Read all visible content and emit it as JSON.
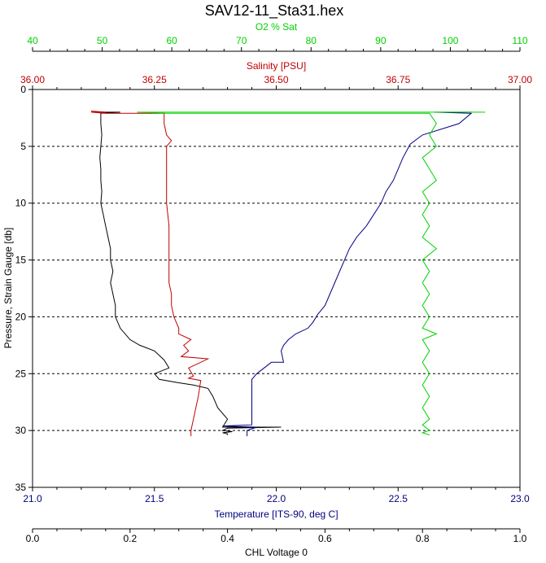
{
  "chart_data": {
    "type": "line",
    "title": "SAV12-11_Sta31.hex",
    "y_axis": {
      "label": "Pressure, Strain Gauge [db]",
      "range": [
        0,
        35
      ],
      "ticks": [
        "0",
        "5",
        "10",
        "15",
        "20",
        "25",
        "30",
        "35"
      ],
      "inverted": true,
      "grid": "dotted at 5, 10, 15, 20, 25, 30"
    },
    "x_axes": [
      {
        "id": "o2",
        "label": "O2 % Sat",
        "position": "top",
        "color": "#00d000",
        "range": [
          40,
          110
        ],
        "ticks": [
          "40",
          "50",
          "60",
          "70",
          "80",
          "90",
          "100",
          "110"
        ]
      },
      {
        "id": "sal",
        "label": "Salinity [PSU]",
        "position": "top",
        "color": "#c00000",
        "range": [
          36.0,
          37.0
        ],
        "ticks": [
          "36.00",
          "36.25",
          "36.50",
          "36.75",
          "37.00"
        ]
      },
      {
        "id": "temp",
        "label": "Temperature [ITS-90, deg C]",
        "position": "bottom",
        "color": "#000080",
        "range": [
          21.0,
          23.0
        ],
        "ticks": [
          "21.0",
          "21.5",
          "22.0",
          "22.5",
          "23.0"
        ]
      },
      {
        "id": "chl",
        "label": "CHL Voltage 0",
        "position": "bottom",
        "color": "#000000",
        "range": [
          0.0,
          1.0
        ],
        "ticks": [
          "0.0",
          "0.2",
          "0.4",
          "0.6",
          "0.8",
          "1.0"
        ]
      }
    ],
    "series": [
      {
        "axis": "chl",
        "color": "#000000",
        "points": [
          [
            0.13,
            2.0
          ],
          [
            0.18,
            2.0
          ],
          [
            0.14,
            2.1
          ],
          [
            0.14,
            3
          ],
          [
            0.142,
            4
          ],
          [
            0.14,
            5
          ],
          [
            0.138,
            6
          ],
          [
            0.14,
            7
          ],
          [
            0.14,
            8
          ],
          [
            0.142,
            9
          ],
          [
            0.14,
            10
          ],
          [
            0.145,
            11
          ],
          [
            0.15,
            12
          ],
          [
            0.155,
            13
          ],
          [
            0.16,
            14
          ],
          [
            0.16,
            15
          ],
          [
            0.165,
            16
          ],
          [
            0.16,
            17
          ],
          [
            0.165,
            18
          ],
          [
            0.17,
            19
          ],
          [
            0.17,
            20
          ],
          [
            0.18,
            21
          ],
          [
            0.2,
            22
          ],
          [
            0.22,
            22.5
          ],
          [
            0.25,
            23
          ],
          [
            0.27,
            23.8
          ],
          [
            0.28,
            24.5
          ],
          [
            0.25,
            25
          ],
          [
            0.26,
            25.5
          ],
          [
            0.3,
            25.8
          ],
          [
            0.33,
            26
          ],
          [
            0.36,
            26.3
          ],
          [
            0.37,
            27
          ],
          [
            0.38,
            28
          ],
          [
            0.39,
            28.5
          ],
          [
            0.4,
            29
          ],
          [
            0.39,
            29.7
          ],
          [
            0.51,
            29.7
          ],
          [
            0.4,
            29.8
          ],
          [
            0.39,
            30
          ],
          [
            0.41,
            30.1
          ],
          [
            0.39,
            30.2
          ],
          [
            0.4,
            30.3
          ],
          [
            0.4,
            30.4
          ]
        ]
      },
      {
        "axis": "sal",
        "color": "#c00000",
        "points": [
          [
            36.12,
            1.9
          ],
          [
            36.15,
            2.0
          ],
          [
            36.12,
            2.0
          ],
          [
            36.15,
            2.1
          ],
          [
            36.27,
            2.1
          ],
          [
            36.27,
            3
          ],
          [
            36.275,
            4
          ],
          [
            36.285,
            4.5
          ],
          [
            36.275,
            5
          ],
          [
            36.275,
            6
          ],
          [
            36.275,
            7
          ],
          [
            36.275,
            8
          ],
          [
            36.275,
            9
          ],
          [
            36.275,
            10
          ],
          [
            36.28,
            12
          ],
          [
            36.28,
            15
          ],
          [
            36.28,
            17
          ],
          [
            36.285,
            18
          ],
          [
            36.285,
            19
          ],
          [
            36.29,
            20
          ],
          [
            36.3,
            21
          ],
          [
            36.3,
            21.5
          ],
          [
            36.325,
            22
          ],
          [
            36.31,
            22.5
          ],
          [
            36.32,
            23
          ],
          [
            36.305,
            23.5
          ],
          [
            36.36,
            23.7
          ],
          [
            36.32,
            24.5
          ],
          [
            36.33,
            25.2
          ],
          [
            36.32,
            25.4
          ],
          [
            36.345,
            25.6
          ],
          [
            36.34,
            27
          ],
          [
            36.335,
            28
          ],
          [
            36.33,
            29
          ],
          [
            36.325,
            30
          ],
          [
            36.325,
            30.5
          ]
        ]
      },
      {
        "axis": "temp",
        "color": "#000080",
        "points": [
          [
            22.8,
            2.0
          ],
          [
            22.65,
            2.0
          ],
          [
            22.8,
            2.1
          ],
          [
            22.75,
            3
          ],
          [
            22.6,
            4
          ],
          [
            22.55,
            4.8
          ],
          [
            22.52,
            6
          ],
          [
            22.5,
            7
          ],
          [
            22.48,
            8
          ],
          [
            22.45,
            9
          ],
          [
            22.43,
            10
          ],
          [
            22.4,
            11
          ],
          [
            22.37,
            12
          ],
          [
            22.33,
            13
          ],
          [
            22.3,
            14
          ],
          [
            22.28,
            15
          ],
          [
            22.26,
            16
          ],
          [
            22.24,
            17
          ],
          [
            22.22,
            18
          ],
          [
            22.2,
            19
          ],
          [
            22.17,
            19.8
          ],
          [
            22.15,
            20.5
          ],
          [
            22.13,
            21
          ],
          [
            22.08,
            21.5
          ],
          [
            22.05,
            22
          ],
          [
            22.03,
            22.5
          ],
          [
            22.02,
            23
          ],
          [
            22.03,
            24
          ],
          [
            21.98,
            24
          ],
          [
            21.95,
            24.5
          ],
          [
            21.92,
            25
          ],
          [
            21.9,
            25.5
          ],
          [
            21.9,
            26
          ],
          [
            21.9,
            27
          ],
          [
            21.9,
            28
          ],
          [
            21.9,
            29.5
          ],
          [
            21.78,
            29.6
          ],
          [
            21.92,
            29.7
          ],
          [
            21.88,
            30
          ],
          [
            21.88,
            30.5
          ]
        ]
      },
      {
        "axis": "o2",
        "color": "#00d000",
        "points": [
          [
            105,
            2.0
          ],
          [
            55,
            2.0
          ],
          [
            59,
            2.1
          ],
          [
            97,
            2.1
          ],
          [
            98,
            3
          ],
          [
            97,
            4
          ],
          [
            98,
            5
          ],
          [
            96,
            6
          ],
          [
            97,
            7
          ],
          [
            98,
            8
          ],
          [
            96,
            9
          ],
          [
            97,
            10
          ],
          [
            96,
            11
          ],
          [
            97,
            12
          ],
          [
            96,
            13
          ],
          [
            98,
            14
          ],
          [
            96,
            15
          ],
          [
            97,
            16
          ],
          [
            96,
            17
          ],
          [
            97,
            18
          ],
          [
            96,
            19
          ],
          [
            97,
            20
          ],
          [
            96,
            21
          ],
          [
            98,
            21.5
          ],
          [
            96,
            22
          ],
          [
            97,
            23
          ],
          [
            96,
            24
          ],
          [
            97,
            25
          ],
          [
            96,
            26
          ],
          [
            97,
            27
          ],
          [
            96,
            28
          ],
          [
            97,
            29
          ],
          [
            96,
            29.5
          ],
          [
            97,
            30
          ],
          [
            96,
            30.2
          ],
          [
            97,
            30.4
          ]
        ]
      }
    ]
  }
}
